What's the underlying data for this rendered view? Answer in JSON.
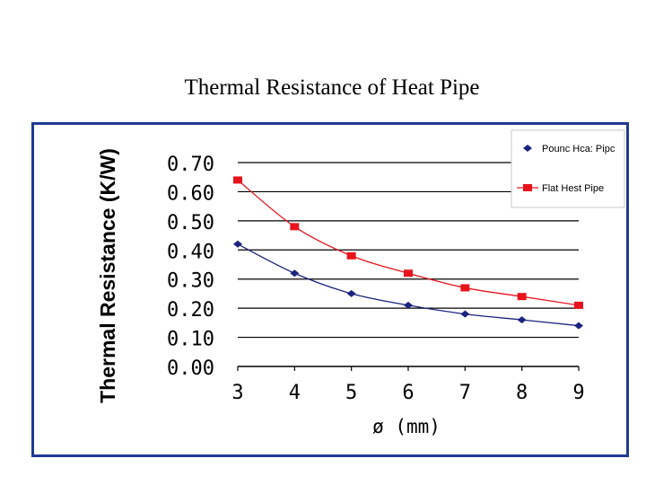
{
  "slide": {
    "title": "Thermal Resistance of Heat Pipe"
  },
  "chart_data": {
    "type": "line",
    "title": "Thermal Resistance of Heat Pipe",
    "xlabel": "ø (mm)",
    "ylabel": "Thermal Resistance (K/W)",
    "x": [
      3,
      4,
      5,
      6,
      7,
      8,
      9
    ],
    "ylim": [
      0.0,
      0.7
    ],
    "yticks": [
      "0.00",
      "0.10",
      "0.20",
      "0.30",
      "0.40",
      "0.50",
      "0.60",
      "0.70"
    ],
    "grid": true,
    "legend_position": "top-right",
    "series": [
      {
        "name": "Pounc Hca: Pipc",
        "color": "#1a237e",
        "marker": "diamond",
        "values": [
          0.42,
          0.32,
          0.25,
          0.21,
          0.18,
          0.16,
          0.14
        ]
      },
      {
        "name": "Flat Hest Pipe",
        "color": "#e8141c",
        "marker": "square",
        "values": [
          0.64,
          0.48,
          0.38,
          0.32,
          0.27,
          0.24,
          0.21
        ]
      }
    ]
  }
}
